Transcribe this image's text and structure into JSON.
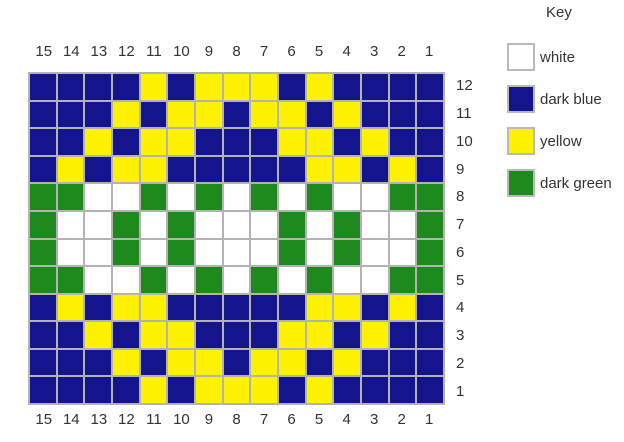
{
  "key": {
    "title": "Key",
    "items": [
      {
        "label": "white",
        "color": "#ffffff"
      },
      {
        "label": "dark blue",
        "color": "#14148c"
      },
      {
        "label": "yellow",
        "color": "#fff200"
      },
      {
        "label": "dark green",
        "color": "#1e8a1e"
      }
    ]
  },
  "chart_data": {
    "type": "heatmap",
    "description": "15x12 colorwork pattern chart, columns numbered 15 to 1 left-to-right (top and bottom), rows numbered 12 to 1 top-to-bottom (right side)",
    "columns": [
      15,
      14,
      13,
      12,
      11,
      10,
      9,
      8,
      7,
      6,
      5,
      4,
      3,
      2,
      1
    ],
    "rows": [
      12,
      11,
      10,
      9,
      8,
      7,
      6,
      5,
      4,
      3,
      2,
      1
    ],
    "palette": {
      "W": "#ffffff",
      "B": "#14148c",
      "Y": "#fff200",
      "G": "#1e8a1e"
    },
    "palette_names": {
      "W": "white",
      "B": "dark blue",
      "Y": "yellow",
      "G": "dark green"
    },
    "cells": [
      "BBBBYBYYYBYBBBB",
      "BBBYBYYBYYBYBBB",
      "BBYBYYBBBYYBYBB",
      "BYBYYBBBBBYYBYB",
      "GGWWGWGWGWGWWGG",
      "GWWGWGWWWGWGWWG",
      "GWWGWGWWWGWGWWG",
      "GGWWGWGWGWGWWGG",
      "BYBYYBBBBBYYBYB",
      "BBYBYYBBBYYBYBB",
      "BBBYBYYBYYBYBBB",
      "BBBBYBYYYBYBBBB"
    ],
    "layout": {
      "gridline_color": "#b3b3b3",
      "text_color": "#333333"
    }
  }
}
